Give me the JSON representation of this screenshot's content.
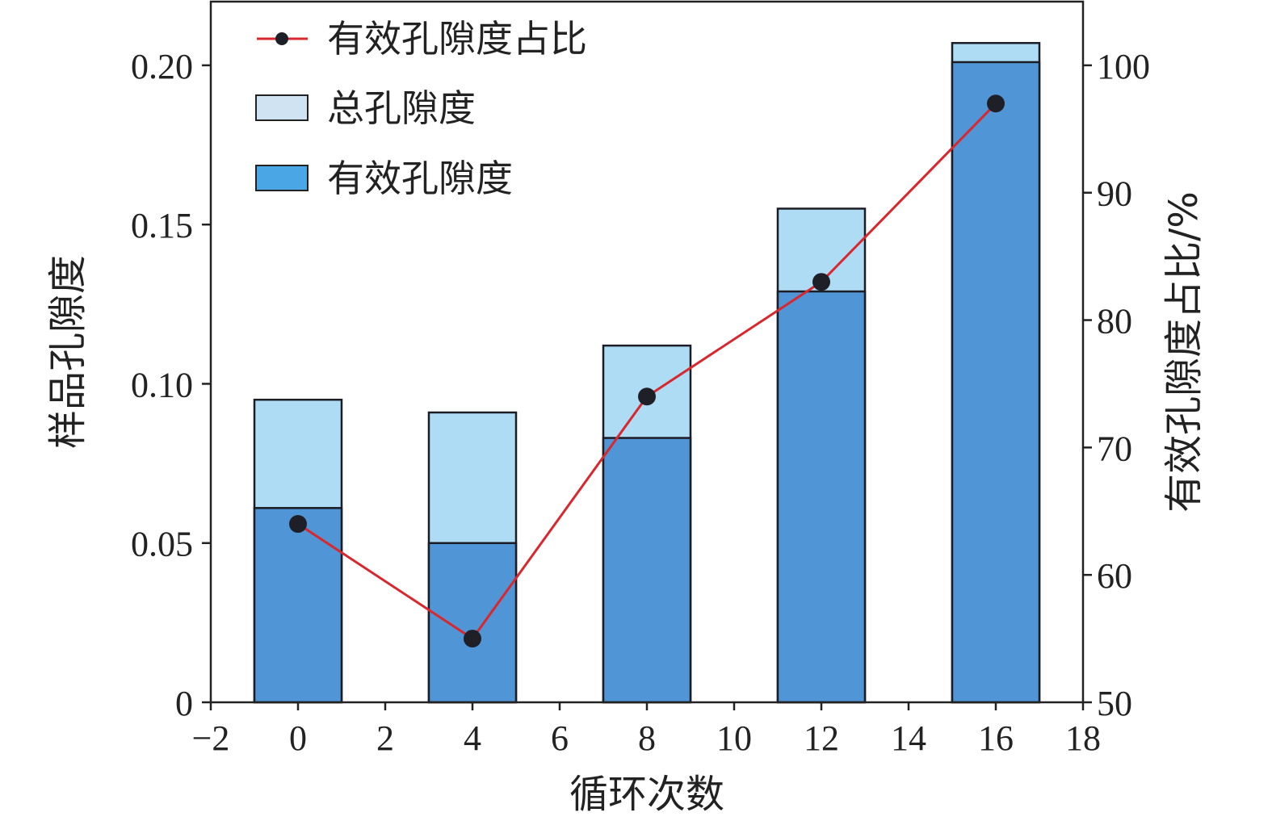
{
  "chart_data": {
    "type": "bar",
    "x": [
      0,
      4,
      8,
      12,
      16
    ],
    "xlabel": "循环次数",
    "xlim": [
      -2,
      18
    ],
    "xticks": [
      "−2",
      "0",
      "2",
      "4",
      "6",
      "8",
      "10",
      "12",
      "14",
      "16",
      "18"
    ],
    "ylabel": "样品孔隙度",
    "ylim": [
      0,
      0.22
    ],
    "yticks": [
      "0",
      "0.05",
      "0.10",
      "0.15",
      "0.20"
    ],
    "y2label": "有效孔隙度占比/%",
    "y2lim": [
      50,
      105
    ],
    "y2ticks": [
      "50",
      "60",
      "70",
      "80",
      "90",
      "100"
    ],
    "series": [
      {
        "name": "总孔隙度",
        "type": "bar",
        "axis": "left",
        "color": "#AEDCF5",
        "values": [
          0.095,
          0.091,
          0.112,
          0.155,
          0.207
        ]
      },
      {
        "name": "有效孔隙度",
        "type": "bar",
        "axis": "left",
        "color": "#5095D6",
        "values": [
          0.061,
          0.05,
          0.083,
          0.129,
          0.201
        ]
      },
      {
        "name": "有效孔隙度占比",
        "type": "line",
        "axis": "right",
        "color": "#D9272D",
        "marker_color": "#1F1F28",
        "values": [
          64,
          55,
          74,
          83,
          97
        ]
      }
    ],
    "legend": {
      "position": "top-left",
      "items": [
        "有效孔隙度占比",
        "总孔隙度",
        "有效孔隙度"
      ]
    },
    "legend_swatch_colors": {
      "总孔隙度": "#CFE3F2",
      "有效孔隙度": "#4AA6E5"
    },
    "grid": false
  }
}
